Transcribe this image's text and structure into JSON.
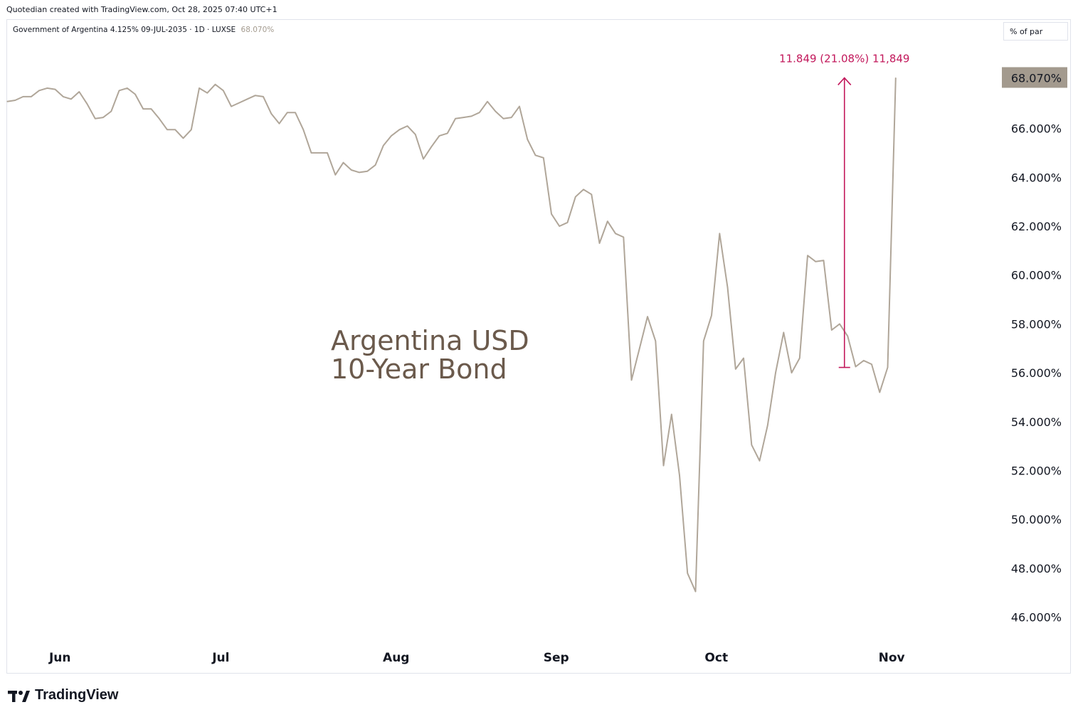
{
  "header": {
    "credit": "Quotedian created with TradingView.com, Oct 28, 2025 07:40 UTC+1",
    "symbol": "Government of Argentina 4.125% 09-JUL-2035 · 1D · LUXSE",
    "last_value": "68.070%",
    "unit": "% of par"
  },
  "footer": {
    "logo_text": "TradingView"
  },
  "colors": {
    "line": "#b0a699",
    "measure": "#c2185b",
    "annotation": "#6b5a4c",
    "last_tag": "#a39a8e"
  },
  "chart_data": {
    "type": "line",
    "title": "",
    "annotation": [
      "Argentina USD",
      "10-Year Bond"
    ],
    "ylim": [
      45,
      69.8
    ],
    "xlim": [
      0,
      124
    ],
    "y_ticks": [
      {
        "value": 46,
        "label": "46.000%"
      },
      {
        "value": 48,
        "label": "48.000%"
      },
      {
        "value": 50,
        "label": "50.000%"
      },
      {
        "value": 52,
        "label": "52.000%"
      },
      {
        "value": 54,
        "label": "54.000%"
      },
      {
        "value": 56,
        "label": "56.000%"
      },
      {
        "value": 58,
        "label": "58.000%"
      },
      {
        "value": 60,
        "label": "60.000%"
      },
      {
        "value": 62,
        "label": "62.000%"
      },
      {
        "value": 64,
        "label": "64.000%"
      },
      {
        "value": 66,
        "label": "66.000%"
      }
    ],
    "x_ticks": [
      {
        "value": 6.6,
        "label": "Jun"
      },
      {
        "value": 26.7,
        "label": "Jul"
      },
      {
        "value": 48.6,
        "label": "Aug"
      },
      {
        "value": 68.6,
        "label": "Sep"
      },
      {
        "value": 88.6,
        "label": "Oct"
      },
      {
        "value": 110.5,
        "label": "Nov"
      }
    ],
    "last": {
      "value": 68.07,
      "label": "68.070%"
    },
    "measure": {
      "x": 104.6,
      "from": 56.22,
      "to": 68.07,
      "label": "11.849 (21.08%) 11,849"
    },
    "series": [
      {
        "values": [
          67.1,
          67.15,
          67.3,
          67.3,
          67.55,
          67.65,
          67.6,
          67.3,
          67.2,
          67.5,
          67.0,
          66.4,
          66.45,
          66.7,
          67.55,
          67.65,
          67.4,
          66.8,
          66.8,
          66.4,
          65.95,
          65.95,
          65.6,
          65.95,
          67.65,
          67.45,
          67.8,
          67.55,
          66.9,
          67.05,
          67.2,
          67.35,
          67.3,
          66.6,
          66.2,
          66.65,
          66.65,
          65.95,
          65.0,
          65.0,
          65.0,
          64.1,
          64.6,
          64.3,
          64.2,
          64.25,
          64.5,
          65.3,
          65.7,
          65.95,
          66.1,
          65.75,
          64.75,
          65.25,
          65.7,
          65.8,
          66.4,
          66.45,
          66.5,
          66.65,
          67.1,
          66.7,
          66.4,
          66.45,
          66.9,
          65.55,
          64.9,
          64.8,
          62.5,
          62.0,
          62.15,
          63.2,
          63.5,
          63.3,
          61.3,
          62.2,
          61.7,
          61.55,
          55.7,
          57.0,
          58.3,
          57.3,
          52.2,
          54.3,
          51.8,
          47.8,
          47.05,
          57.3,
          58.35,
          61.7,
          59.5,
          56.15,
          56.6,
          53.05,
          52.4,
          53.85,
          56.0,
          57.65,
          56.0,
          56.6,
          60.8,
          60.55,
          60.6,
          57.75,
          58.0,
          57.5,
          56.25,
          56.5,
          56.35,
          55.2,
          56.22,
          68.07
        ]
      }
    ]
  }
}
